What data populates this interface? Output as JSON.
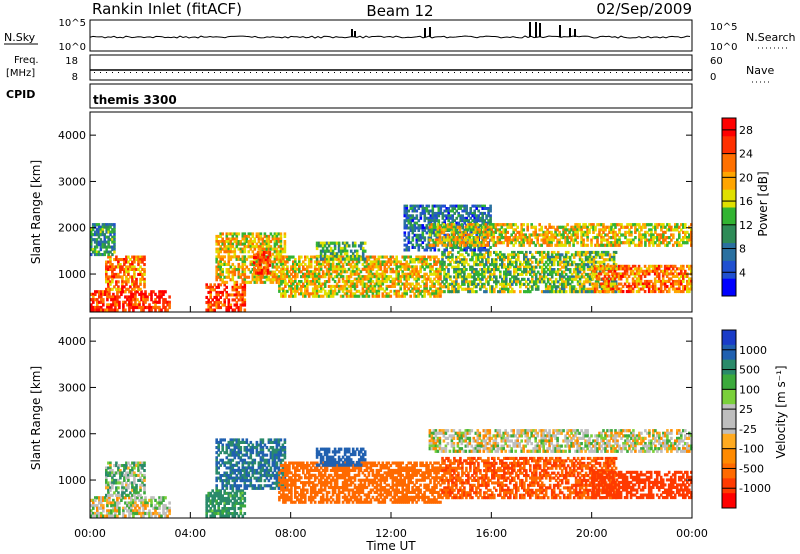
{
  "header": {
    "title": "Rankin Inlet (fitACF)",
    "beam": "Beam 12",
    "date": "02/Sep/2009"
  },
  "panels": {
    "sky": {
      "left_label": "N.Sky",
      "right_label": "N.Search",
      "left_ticks": [
        "10^5",
        "10^0"
      ],
      "right_ticks": [
        "10^5",
        "10^0"
      ]
    },
    "freq": {
      "left_label": "Freq.",
      "left_unit": "[MHz]",
      "right_label": "Nave",
      "left_ticks": [
        "18",
        "8"
      ],
      "right_ticks": [
        "60",
        "0"
      ]
    },
    "cpid": {
      "label": "CPID",
      "value": "themis 3300"
    }
  },
  "colors": {
    "power": [
      "#0000ff",
      "#2050d0",
      "#2a70a0",
      "#2e8b57",
      "#32b432",
      "#e0e000",
      "#ffa500",
      "#ff7000",
      "#ff3000",
      "#ff0000"
    ],
    "velocity_pos": [
      "#1a3cc8",
      "#2060b0",
      "#2a8a6a",
      "#3caa3c",
      "#7ad03a"
    ],
    "velocity_gs": "#bebebe",
    "velocity_neg": [
      "#ffaa20",
      "#ff8a00",
      "#ff6a00",
      "#ff3a00",
      "#ff0000"
    ]
  },
  "chart_data": [
    {
      "type": "heatmap",
      "name": "power",
      "xlabel": "",
      "ylabel": "Slant Range [km]",
      "xlim": [
        0,
        24
      ],
      "ylim": [
        180,
        4500
      ],
      "yticks": [
        "1000",
        "2000",
        "3000",
        "4000"
      ],
      "colorbar_label": "Power [dB]",
      "colorbar_ticks": [
        "4",
        "8",
        "12",
        "16",
        "20",
        "24",
        "28"
      ],
      "colorbar_range": [
        0,
        30
      ],
      "echo_regions": [
        {
          "t_start": 0.0,
          "t_end": 3.2,
          "r_start": 200,
          "r_end": 650,
          "value": 26
        },
        {
          "t_start": 0.6,
          "t_end": 2.2,
          "r_start": 650,
          "r_end": 1400,
          "value": 22
        },
        {
          "t_start": 0.0,
          "t_end": 1.0,
          "r_start": 1400,
          "r_end": 2100,
          "value": 10
        },
        {
          "t_start": 4.6,
          "t_end": 6.2,
          "r_start": 200,
          "r_end": 800,
          "value": 25
        },
        {
          "t_start": 5.0,
          "t_end": 7.8,
          "r_start": 800,
          "r_end": 1900,
          "value": 18
        },
        {
          "t_start": 6.5,
          "t_end": 7.2,
          "r_start": 1000,
          "r_end": 1500,
          "value": 26
        },
        {
          "t_start": 7.5,
          "t_end": 14.0,
          "r_start": 500,
          "r_end": 1400,
          "value": 18
        },
        {
          "t_start": 9.0,
          "t_end": 11.0,
          "r_start": 1300,
          "r_end": 1700,
          "value": 12
        },
        {
          "t_start": 14.0,
          "t_end": 21.0,
          "r_start": 600,
          "r_end": 1500,
          "value": 14
        },
        {
          "t_start": 12.5,
          "t_end": 16.0,
          "r_start": 1500,
          "r_end": 2500,
          "value": 8
        },
        {
          "t_start": 13.5,
          "t_end": 24.0,
          "r_start": 1600,
          "r_end": 2100,
          "value": 18
        },
        {
          "t_start": 20.0,
          "t_end": 24.0,
          "r_start": 600,
          "r_end": 1200,
          "value": 22
        }
      ]
    },
    {
      "type": "heatmap",
      "name": "velocity",
      "xlabel": "Time UT",
      "ylabel": "Slant Range [km]",
      "xlim": [
        0,
        24
      ],
      "ylim": [
        180,
        4500
      ],
      "xticks": [
        "00:00",
        "04:00",
        "08:00",
        "12:00",
        "16:00",
        "20:00",
        "00:00"
      ],
      "yticks": [
        "1000",
        "2000",
        "3000",
        "4000"
      ],
      "colorbar_label": "Velocity [m s⁻¹]",
      "colorbar_ticks": [
        "1000",
        "500",
        "100",
        "25",
        "-25",
        "-100",
        "-500",
        "-1000"
      ],
      "echo_regions": [
        {
          "t_start": 0.0,
          "t_end": 3.2,
          "r_start": 200,
          "r_end": 650,
          "value": 0
        },
        {
          "t_start": 0.6,
          "t_end": 2.2,
          "r_start": 650,
          "r_end": 1400,
          "value": 50
        },
        {
          "t_start": 4.6,
          "t_end": 6.2,
          "r_start": 200,
          "r_end": 800,
          "value": 150
        },
        {
          "t_start": 5.0,
          "t_end": 7.8,
          "r_start": 800,
          "r_end": 1900,
          "value": 300
        },
        {
          "t_start": 7.5,
          "t_end": 14.0,
          "r_start": 500,
          "r_end": 1400,
          "value": -200
        },
        {
          "t_start": 9.0,
          "t_end": 11.0,
          "r_start": 1300,
          "r_end": 1700,
          "value": 600
        },
        {
          "t_start": 14.0,
          "t_end": 21.0,
          "r_start": 600,
          "r_end": 1500,
          "value": -300
        },
        {
          "t_start": 13.5,
          "t_end": 24.0,
          "r_start": 1600,
          "r_end": 2100,
          "value": 0
        },
        {
          "t_start": 20.0,
          "t_end": 24.0,
          "r_start": 600,
          "r_end": 1200,
          "value": -600
        }
      ]
    }
  ]
}
